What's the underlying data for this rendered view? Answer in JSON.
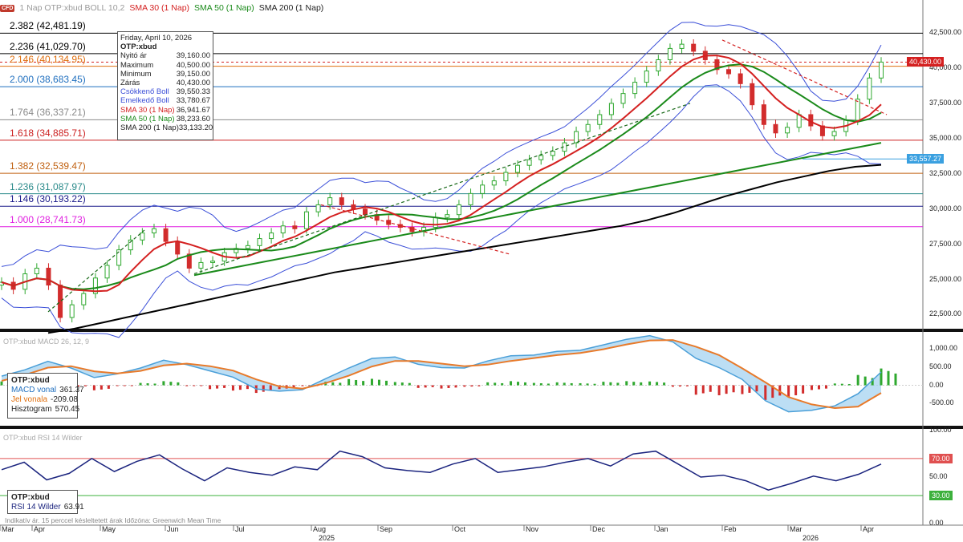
{
  "header": {
    "badge": "CFD",
    "symbol": "1 Nap OTP:xbud BOLL 10,2",
    "sma30": "SMA 30 (1 Nap)",
    "sma50": "SMA 50 (1 Nap)",
    "sma200": "SMA 200 (1 Nap)"
  },
  "colors": {
    "sma30": "#d42020",
    "sma50": "#1a8a1a",
    "sma200": "#000000",
    "boll": "#3b4fd8",
    "candle_up": "#2fa82f",
    "candle_down": "#d22c2c",
    "macd": "#4a9fd8",
    "signal": "#e87a2a",
    "rsi": "#1a237e"
  },
  "fib_levels": [
    {
      "label": "2.382 (42,481.19)",
      "value": 42481.19,
      "color": "#000000"
    },
    {
      "label": "2.236 (41,029.70)",
      "value": 41029.7,
      "color": "#000000"
    },
    {
      "label": "2.146 (40,134.95)",
      "value": 40134.95,
      "color": "#e07010"
    },
    {
      "label": "2.000 (38,683.45)",
      "value": 38683.45,
      "color": "#1f6fbf"
    },
    {
      "label": "1.764 (36,337.21)",
      "value": 36337.21,
      "color": "#8a8a8a"
    },
    {
      "label": "1.618 (34,885.71)",
      "value": 34885.71,
      "color": "#cc2020"
    },
    {
      "label": "1.382 (32,539.47)",
      "value": 32539.47,
      "color": "#c06010"
    },
    {
      "label": "1.236 (31,087.97)",
      "value": 31087.97,
      "color": "#2a8a8a"
    },
    {
      "label": "1.146 (30,193.22)",
      "value": 30193.22,
      "color": "#1a1a8a"
    },
    {
      "label": "1.000 (28,741.73)",
      "value": 28741.73,
      "color": "#e020e0"
    }
  ],
  "tooltip": {
    "date": "Friday, April 10, 2026",
    "symbol": "OTP:xbud",
    "rows": [
      {
        "k": "Nyitó ár",
        "v": "39,160.00",
        "color": "#222"
      },
      {
        "k": "Maximum",
        "v": "40,500.00",
        "color": "#222"
      },
      {
        "k": "Minimum",
        "v": "39,150.00",
        "color": "#222"
      },
      {
        "k": "Zárás",
        "v": "40,430.00",
        "color": "#222"
      },
      {
        "k": "Csökkenő Boll",
        "v": "39,550.33",
        "color": "#3b4fd8"
      },
      {
        "k": "Emelkedő Boll",
        "v": "33,780.67",
        "color": "#3b4fd8"
      },
      {
        "k": "SMA 30 (1 Nap)",
        "v": "36,941.67",
        "color": "#d42020"
      },
      {
        "k": "SMA 50 (1 Nap)",
        "v": "38,233.60",
        "color": "#1a8a1a"
      },
      {
        "k": "SMA 200 (1 Nap)",
        "v": "33,133.20",
        "color": "#222"
      }
    ]
  },
  "price_axis": {
    "ticks": [
      "42,500.00",
      "40,000.00",
      "37,500.00",
      "35,000.00",
      "32,500.00",
      "30,000.00",
      "27,500.00",
      "25,000.00",
      "22,500.00"
    ],
    "last_price": "40,430.00",
    "marker_price": "33,557.27"
  },
  "macd": {
    "title": "OTP:xbud MACD 26, 12, 9",
    "box_title": "OTP:xbud",
    "rows": [
      {
        "k": "MACD vonal",
        "v": "361.37",
        "color": "#1f6fbf"
      },
      {
        "k": "Jel vonala",
        "v": "-209.08",
        "color": "#e07010"
      },
      {
        "k": "Hisztogram",
        "v": "570.45",
        "color": "#222"
      }
    ],
    "ticks": [
      "1,000.00",
      "500.00",
      "0.00",
      "-500.00"
    ]
  },
  "rsi": {
    "title": "OTP:xbud RSI 14 Wilder",
    "box_title": "OTP:xbud",
    "rows": [
      {
        "k": "RSI 14 Wilder",
        "v": "63.91",
        "color": "#1a237e"
      }
    ],
    "ticks": [
      "100.00",
      "50.00",
      "0.00"
    ],
    "overbought": "70.00",
    "oversold": "30.00"
  },
  "footnote": "Indikatív ár. 15 perccel késleltetett árak   Időzóna: Greenwich Mean Time",
  "x_axis": {
    "months": [
      "Mar",
      "Apr",
      "May",
      "Jun",
      "Jul",
      "Aug",
      "Sep",
      "Oct",
      "Nov",
      "Dec",
      "Jan",
      "Feb",
      "Mar",
      "Apr"
    ],
    "years": [
      "2025",
      "2026"
    ]
  },
  "chart_data": {
    "type": "line",
    "title": "",
    "series_price_closes": [
      24800,
      24300,
      25400,
      25800,
      24600,
      22300,
      23200,
      24000,
      25100,
      26000,
      27100,
      27800,
      28300,
      28600,
      27700,
      26800,
      25800,
      26200,
      26300,
      26900,
      27200,
      27400,
      27900,
      28300,
      28800,
      28600,
      29800,
      30300,
      30800,
      30300,
      30000,
      29600,
      29200,
      28900,
      28700,
      28400,
      28700,
      29400,
      29600,
      30300,
      31100,
      31700,
      32000,
      32600,
      33100,
      33500,
      33800,
      34100,
      34700,
      35500,
      36000,
      36700,
      37500,
      38200,
      39000,
      39800,
      40600,
      41400,
      41700,
      41200,
      40600,
      39900,
      39600,
      38900,
      37400,
      36000,
      35400,
      35800,
      36700,
      35900,
      35200,
      35500,
      36300,
      37800,
      39300,
      40430
    ],
    "sma200": [
      21200,
      21500,
      21900,
      22300,
      22700,
      23100,
      23500,
      23900,
      24300,
      24700,
      25100,
      25500,
      25800,
      26100,
      26400,
      26700,
      27000,
      27300,
      27600,
      27900,
      28200,
      28500,
      28800,
      29200,
      29700,
      30300,
      30900,
      31400,
      31900,
      32300,
      32700,
      33000,
      33133
    ],
    "ylim": [
      21500,
      43500
    ],
    "macd_line": [
      250,
      420,
      650,
      470,
      210,
      310,
      470,
      680,
      560,
      390,
      220,
      -100,
      -160,
      -120,
      180,
      470,
      730,
      770,
      570,
      480,
      470,
      660,
      800,
      820,
      920,
      950,
      1100,
      1250,
      1350,
      1180,
      730,
      480,
      160,
      -420,
      -720,
      -680,
      -560,
      -230,
      361
    ],
    "macd_signal": [
      120,
      280,
      480,
      520,
      380,
      320,
      390,
      540,
      590,
      520,
      400,
      160,
      -30,
      -90,
      60,
      260,
      510,
      660,
      660,
      590,
      520,
      560,
      660,
      740,
      820,
      880,
      980,
      1110,
      1220,
      1230,
      1050,
      820,
      460,
      80,
      -320,
      -520,
      -620,
      -580,
      -209
    ],
    "rsi": [
      58,
      66,
      47,
      54,
      70,
      56,
      67,
      74,
      59,
      46,
      60,
      55,
      52,
      61,
      58,
      78,
      72,
      60,
      57,
      55,
      64,
      70,
      55,
      58,
      61,
      66,
      70,
      62,
      75,
      78,
      64,
      50,
      52,
      46,
      36,
      43,
      51,
      46,
      53,
      64
    ],
    "xlabel": "",
    "ylabel": ""
  }
}
